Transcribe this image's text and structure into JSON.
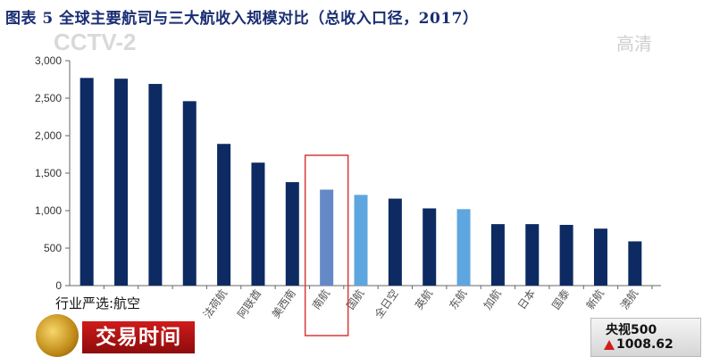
{
  "title": "图表 5   全球主要航司与三大航收入规模对比（总收入口径，2017）",
  "overlay": {
    "watermark": "CCTV-2",
    "hd_label": "高清",
    "segment_tag": "行业严选:航空",
    "show_name": "交易时间",
    "ticker_name": "央视500",
    "ticker_value": "1008.62"
  },
  "colors": {
    "bar_dark": "#0d2a63",
    "bar_light": "#5ea6df",
    "bar_highlight": "#6489c6",
    "highlight_box": "#d63a3a",
    "title": "#1a2e73"
  },
  "chart_data": {
    "type": "bar",
    "categories": [
      "",
      "",
      "",
      "",
      "法荷航",
      "阿联酋",
      "美西南",
      "南航",
      "国航",
      "全日空",
      "英航",
      "东航",
      "加航",
      "日本",
      "国泰",
      "新航",
      "澳航"
    ],
    "values": [
      2770,
      2760,
      2690,
      2460,
      1890,
      1640,
      1380,
      1280,
      1210,
      1160,
      1030,
      1020,
      820,
      820,
      810,
      760,
      590
    ],
    "bar_styles": [
      "dark",
      "dark",
      "dark",
      "dark",
      "dark",
      "dark",
      "dark",
      "highlight",
      "light",
      "dark",
      "dark",
      "light",
      "dark",
      "dark",
      "dark",
      "dark",
      "dark"
    ],
    "highlighted_category": "南航",
    "ylim": [
      0,
      3000
    ],
    "yticks": [
      0,
      500,
      1000,
      1500,
      2000,
      2500,
      3000
    ],
    "ytick_labels": [
      "0",
      "500",
      "1,000",
      "1,500",
      "2,000",
      "2,500",
      "3,000"
    ],
    "grid": false,
    "legend": "none"
  }
}
